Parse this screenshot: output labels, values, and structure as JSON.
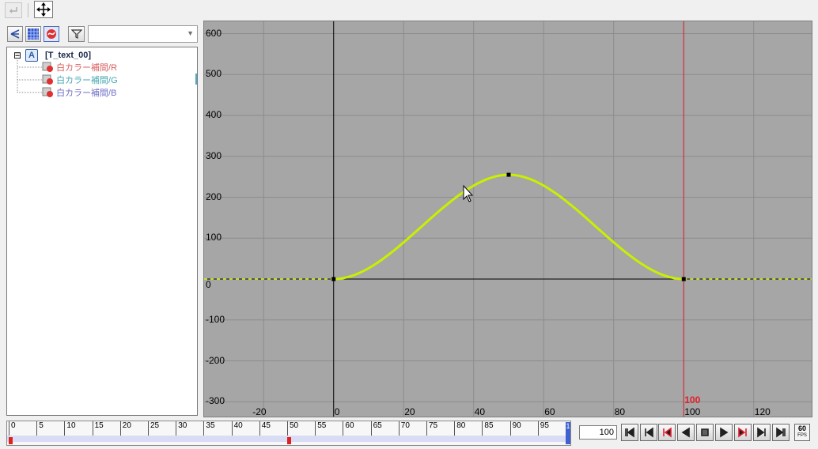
{
  "toolbar": {
    "undo_icon": "return-arrow-icon",
    "move_icon": "move-cross-icon"
  },
  "tree_toolbar": {
    "icons": [
      "hierarchy-icon",
      "grid-table-icon",
      "curve-icon"
    ],
    "filter_icon": "filter-funnel-icon",
    "filter_value": ""
  },
  "tree": {
    "root_toggle": "⊟",
    "root_label": "[T_text_00]",
    "children": [
      {
        "label": "白カラー補間/R",
        "color": "#d96060"
      },
      {
        "label": "白カラー補間/G",
        "color": "#45a7b0"
      },
      {
        "label": "白カラー補間/B",
        "color": "#6f6fc8"
      }
    ]
  },
  "graph": {
    "y_ticks": [
      "600",
      "500",
      "400",
      "300",
      "200",
      "100",
      "0",
      "-100",
      "-200",
      "-300"
    ],
    "x_ticks": [
      "-20",
      "0",
      "20",
      "40",
      "60",
      "80",
      "100",
      "120"
    ],
    "current_frame_label": "100",
    "current_frame_color": "#e0202a",
    "curve_color": "#c8f000",
    "background": "#a6a6a6"
  },
  "chart_data": {
    "type": "line",
    "x_range": [
      -37,
      137
    ],
    "y_range": [
      -340,
      630
    ],
    "keyframes": [
      [
        0,
        0
      ],
      [
        50,
        255
      ],
      [
        100,
        0
      ]
    ],
    "current_frame": 100
  },
  "timeline": {
    "ticks": [
      "0",
      "5",
      "10",
      "15",
      "20",
      "25",
      "30",
      "35",
      "40",
      "45",
      "50",
      "55",
      "60",
      "65",
      "70",
      "75",
      "80",
      "85",
      "90",
      "95"
    ],
    "end_label": "1",
    "marker_frames": [
      0,
      50,
      100
    ]
  },
  "playback": {
    "frame_value": "100",
    "buttons": [
      "first-frame-icon",
      "prev-key-icon",
      "prev-marker-icon",
      "play-reverse-icon",
      "stop-icon",
      "play-icon",
      "next-marker-icon",
      "next-key-icon",
      "last-frame-icon"
    ],
    "fps_top": "60",
    "fps_bottom": "FPS"
  }
}
